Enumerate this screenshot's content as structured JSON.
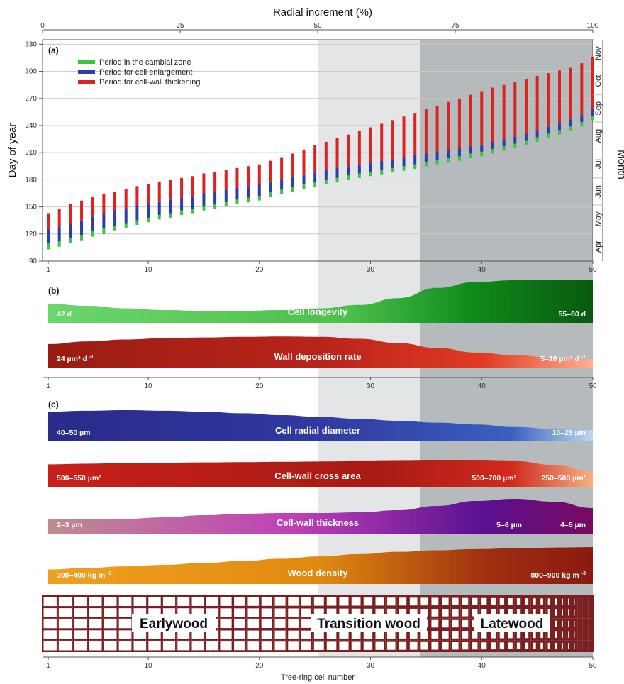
{
  "chart_data": [
    {
      "type": "bar",
      "panel": "(a)",
      "title": "",
      "x_top_label": "Radial increment (%)",
      "x_top_ticks": [
        0,
        25,
        50,
        75,
        100
      ],
      "xlabel": "",
      "ylabel": "Day of year",
      "y2label": "Month",
      "xlim": [
        1,
        50
      ],
      "ylim": [
        90,
        335
      ],
      "y_ticks": [
        90,
        120,
        150,
        180,
        210,
        240,
        270,
        300,
        330
      ],
      "x_ticks": [
        1,
        10,
        20,
        30,
        40,
        50
      ],
      "months": [
        "Apr",
        "May",
        "Jun",
        "Jul",
        "Aug",
        "Sep",
        "Oct",
        "Nov"
      ],
      "legend": [
        {
          "name": "Period in the cambial zone",
          "color": "#3cc43c"
        },
        {
          "name": "Period for cell enlargement",
          "color": "#2c3ea8"
        },
        {
          "name": "Period for cell-wall thickening",
          "color": "#dd2222"
        }
      ],
      "cells": [
        1,
        2,
        3,
        4,
        5,
        6,
        7,
        8,
        9,
        10,
        11,
        12,
        13,
        14,
        15,
        16,
        17,
        18,
        19,
        20,
        21,
        22,
        23,
        24,
        25,
        26,
        27,
        28,
        29,
        30,
        31,
        32,
        33,
        34,
        35,
        36,
        37,
        38,
        39,
        40,
        41,
        42,
        43,
        44,
        45,
        46,
        47,
        48,
        49,
        50
      ],
      "series": [
        {
          "name": "Period in the cambial zone",
          "start": [
            103,
            106,
            110,
            113,
            117,
            120,
            124,
            127,
            130,
            133,
            136,
            138,
            141,
            143,
            146,
            148,
            151,
            153,
            155,
            157,
            161,
            164,
            167,
            170,
            172,
            175,
            177,
            180,
            182,
            184,
            186,
            188,
            190,
            192,
            195,
            197,
            199,
            201,
            204,
            206,
            209,
            212,
            215,
            218,
            222,
            226,
            230,
            234,
            239,
            246
          ],
          "end": [
            110,
            112,
            116,
            119,
            123,
            126,
            129,
            132,
            135,
            138,
            141,
            143,
            146,
            148,
            151,
            153,
            156,
            158,
            160,
            162,
            166,
            169,
            172,
            175,
            177,
            180,
            182,
            185,
            187,
            189,
            191,
            193,
            195,
            197,
            200,
            202,
            204,
            206,
            209,
            211,
            214,
            217,
            220,
            223,
            227,
            231,
            235,
            239,
            244,
            251
          ]
        },
        {
          "name": "Period for cell enlargement",
          "start": [
            110,
            112,
            116,
            119,
            123,
            126,
            129,
            132,
            135,
            138,
            141,
            143,
            146,
            148,
            151,
            153,
            156,
            158,
            160,
            162,
            166,
            169,
            172,
            175,
            177,
            180,
            182,
            185,
            187,
            189,
            191,
            193,
            195,
            197,
            200,
            202,
            204,
            206,
            209,
            211,
            214,
            217,
            220,
            223,
            227,
            231,
            235,
            239,
            244,
            251
          ],
          "end": [
            125,
            128,
            132,
            135,
            139,
            142,
            145,
            148,
            151,
            153,
            156,
            158,
            160,
            162,
            165,
            167,
            169,
            171,
            173,
            175,
            178,
            181,
            184,
            186,
            188,
            191,
            193,
            195,
            197,
            199,
            201,
            203,
            205,
            207,
            209,
            211,
            213,
            215,
            217,
            219,
            222,
            225,
            228,
            231,
            235,
            239,
            243,
            247,
            252,
            259
          ]
        },
        {
          "name": "Period for cell-wall thickening",
          "start": [
            125,
            128,
            132,
            135,
            139,
            142,
            145,
            148,
            151,
            153,
            156,
            158,
            160,
            162,
            165,
            167,
            169,
            171,
            173,
            175,
            178,
            181,
            184,
            186,
            188,
            191,
            193,
            195,
            197,
            199,
            201,
            203,
            205,
            207,
            209,
            211,
            213,
            215,
            217,
            219,
            222,
            225,
            228,
            231,
            235,
            239,
            243,
            247,
            252,
            259
          ],
          "end": [
            143,
            148,
            153,
            157,
            161,
            164,
            167,
            170,
            173,
            175,
            178,
            180,
            182,
            184,
            187,
            189,
            191,
            193,
            195,
            197,
            201,
            205,
            209,
            213,
            218,
            222,
            226,
            230,
            234,
            238,
            242,
            246,
            250,
            254,
            258,
            262,
            266,
            270,
            274,
            278,
            282,
            285,
            288,
            291,
            295,
            298,
            301,
            304,
            309,
            316
          ]
        }
      ]
    },
    {
      "type": "area",
      "panel": "(b)",
      "x_ticks": [
        1,
        10,
        20,
        30,
        40,
        50
      ],
      "bands": [
        {
          "title": "Cell longevity",
          "left_value": "42 d",
          "right_value": "55–60 d",
          "height_rel": [
            0.45,
            0.4,
            0.34,
            0.3,
            0.28,
            0.28,
            0.3,
            0.34,
            0.42,
            0.58,
            0.82,
            0.96,
            1.0,
            1.0,
            1.0
          ]
        },
        {
          "title": "Wall deposition rate",
          "left_value": "24 µm² d",
          "left_sup": "-1",
          "right_value": "5–10 µm² d",
          "right_sup": "-1",
          "height_rel": [
            0.72,
            0.8,
            0.86,
            0.9,
            0.92,
            0.94,
            0.95,
            0.94,
            0.88,
            0.75,
            0.6,
            0.46,
            0.38,
            0.3,
            0.26
          ]
        }
      ]
    },
    {
      "type": "area",
      "panel": "(c)",
      "xlabel": "Tree-ring cell number",
      "x_ticks": [
        1,
        10,
        20,
        30,
        40,
        50
      ],
      "bands": [
        {
          "title": "Cell radial diameter",
          "left_value": "40–50 µm",
          "right_value": "10–25 µm",
          "height_rel": [
            0.95,
            0.98,
            1.0,
            0.98,
            0.95,
            0.9,
            0.84,
            0.78,
            0.72,
            0.66,
            0.6,
            0.54,
            0.46,
            0.4,
            0.36
          ]
        },
        {
          "title": "Cell-wall cross area",
          "left_value": "500–550 µm²",
          "mid_value": "500–700 µm²",
          "right_value": "250–500 µm²",
          "height_rel": [
            0.72,
            0.74,
            0.76,
            0.77,
            0.78,
            0.79,
            0.8,
            0.81,
            0.82,
            0.83,
            0.84,
            0.84,
            0.82,
            0.7,
            0.5
          ]
        },
        {
          "title": "Cell-wall thickness",
          "left_value": "2–3 µm",
          "mid_value": "5–6 µm",
          "right_value": "4–5 µm",
          "height_rel": [
            0.4,
            0.4,
            0.42,
            0.46,
            0.52,
            0.56,
            0.58,
            0.58,
            0.6,
            0.66,
            0.78,
            0.92,
            0.98,
            0.9,
            0.72
          ]
        },
        {
          "title": "Wood density",
          "left_value": "300–400 kg  m",
          "left_sup": "-3",
          "right_value": "800–900 kg  m",
          "right_sup": "-3",
          "height_rel": [
            0.38,
            0.42,
            0.46,
            0.5,
            0.55,
            0.6,
            0.66,
            0.72,
            0.78,
            0.84,
            0.88,
            0.91,
            0.93,
            0.95,
            0.96
          ]
        }
      ],
      "zones": [
        "Earlywood",
        "Transition wood",
        "Latewood"
      ]
    }
  ],
  "colors": {
    "zone_transition": "#e4e5e6",
    "zone_latewood": "#b5babc",
    "grid": "#c8c8c8",
    "cell_wall": "#7a1f1f"
  }
}
